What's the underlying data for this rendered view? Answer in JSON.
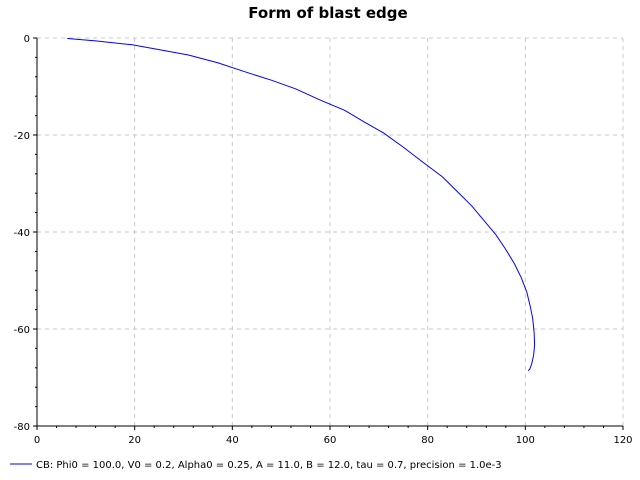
{
  "chart_data": {
    "type": "line",
    "title": "Form of blast edge",
    "xlabel": "",
    "ylabel": "",
    "xlim": [
      0,
      120
    ],
    "ylim": [
      -80,
      0
    ],
    "x_ticks": [
      0,
      20,
      40,
      60,
      80,
      100,
      120
    ],
    "y_ticks": [
      0,
      -20,
      -40,
      -60,
      -80
    ],
    "x_tick_labels": [
      "0",
      "20",
      "40",
      "60",
      "80",
      "100",
      "120"
    ],
    "y_tick_labels": [
      "0",
      "-20",
      "-40",
      "-60",
      "-80"
    ],
    "grid": true,
    "legend_position": "bottom-left",
    "series": [
      {
        "name": "CB: Phi0 = 100.0, V0 = 0.2, Alpha0 = 0.25, A = 11.0, B = 12.0, tau = 0.7, precision = 1.0e-3",
        "color": "#0000ff",
        "points": [
          [
            6.2,
            -0.1
          ],
          [
            12,
            -0.6
          ],
          [
            19.5,
            -1.4
          ],
          [
            25,
            -2.4
          ],
          [
            31,
            -3.5
          ],
          [
            37,
            -5.1
          ],
          [
            43,
            -7.1
          ],
          [
            48,
            -8.7
          ],
          [
            53,
            -10.5
          ],
          [
            58,
            -12.8
          ],
          [
            63,
            -14.9
          ],
          [
            67,
            -17.3
          ],
          [
            71,
            -19.6
          ],
          [
            75,
            -22.5
          ],
          [
            79,
            -25.6
          ],
          [
            83,
            -28.6
          ],
          [
            86,
            -31.6
          ],
          [
            89,
            -34.6
          ],
          [
            91.5,
            -37.6
          ],
          [
            94,
            -40.6
          ],
          [
            96,
            -43.6
          ],
          [
            97.8,
            -46.6
          ],
          [
            99.2,
            -49.5
          ],
          [
            100.3,
            -52.4
          ],
          [
            101,
            -55.3
          ],
          [
            101.5,
            -57.8
          ],
          [
            101.8,
            -60.7
          ],
          [
            101.9,
            -63.2
          ],
          [
            101.7,
            -65.4
          ],
          [
            101.3,
            -67.2
          ],
          [
            100.9,
            -68.3
          ],
          [
            100.6,
            -68.6
          ]
        ]
      }
    ]
  }
}
